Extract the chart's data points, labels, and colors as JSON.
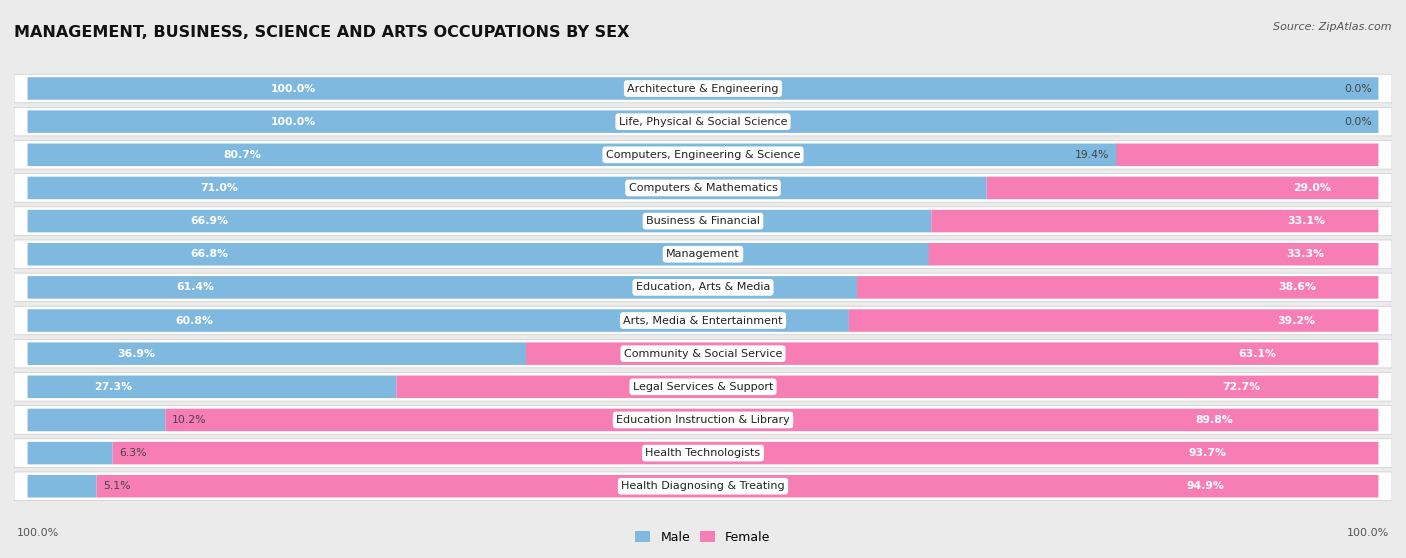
{
  "title": "MANAGEMENT, BUSINESS, SCIENCE AND ARTS OCCUPATIONS BY SEX",
  "source": "Source: ZipAtlas.com",
  "categories": [
    "Architecture & Engineering",
    "Life, Physical & Social Science",
    "Computers, Engineering & Science",
    "Computers & Mathematics",
    "Business & Financial",
    "Management",
    "Education, Arts & Media",
    "Arts, Media & Entertainment",
    "Community & Social Service",
    "Legal Services & Support",
    "Education Instruction & Library",
    "Health Technologists",
    "Health Diagnosing & Treating"
  ],
  "male_pct": [
    100.0,
    100.0,
    80.7,
    71.0,
    66.9,
    66.8,
    61.4,
    60.8,
    36.9,
    27.3,
    10.2,
    6.3,
    5.1
  ],
  "female_pct": [
    0.0,
    0.0,
    19.4,
    29.0,
    33.1,
    33.3,
    38.6,
    39.2,
    63.1,
    72.7,
    89.8,
    93.7,
    94.9
  ],
  "male_color": "#7fb9e0",
  "female_color": "#f77db5",
  "bg_color": "#ebebeb",
  "bar_bg_color": "#ffffff",
  "row_bg_even": "#f5f5f5",
  "row_bg_odd": "#ebebeb",
  "title_fontsize": 11.5,
  "label_fontsize": 8,
  "pct_fontsize": 7.8,
  "legend_fontsize": 9,
  "source_fontsize": 8
}
